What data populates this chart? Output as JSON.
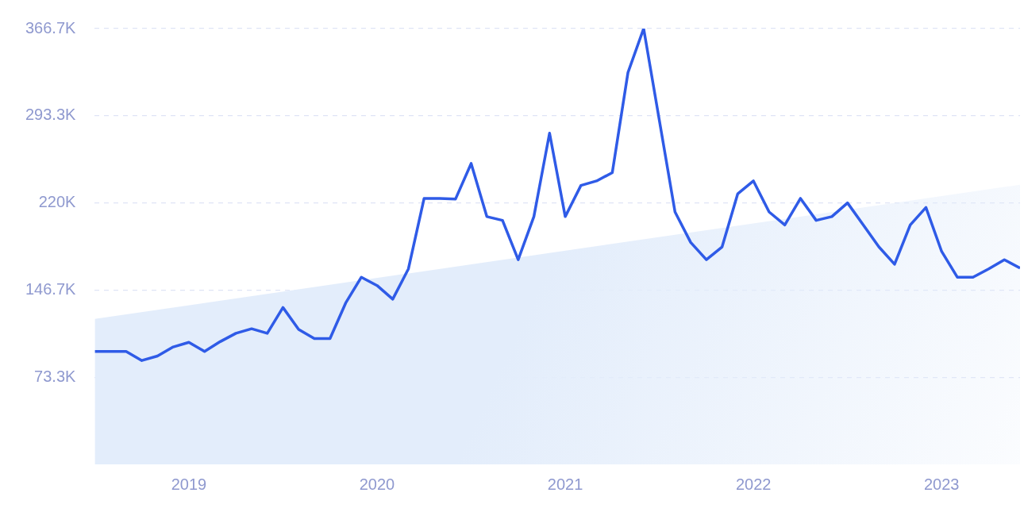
{
  "chart_data": {
    "type": "line",
    "x": [
      "2018-07",
      "2018-08",
      "2018-09",
      "2018-10",
      "2018-11",
      "2018-12",
      "2019-01",
      "2019-02",
      "2019-03",
      "2019-04",
      "2019-05",
      "2019-06",
      "2019-07",
      "2019-08",
      "2019-09",
      "2019-10",
      "2019-11",
      "2019-12",
      "2020-01",
      "2020-02",
      "2020-03",
      "2020-04",
      "2020-05",
      "2020-06",
      "2020-07",
      "2020-08",
      "2020-09",
      "2020-10",
      "2020-11",
      "2020-12",
      "2021-01",
      "2021-02",
      "2021-03",
      "2021-04",
      "2021-05",
      "2021-06",
      "2021-07",
      "2021-08",
      "2021-09",
      "2021-10",
      "2021-11",
      "2021-12",
      "2022-01",
      "2022-02",
      "2022-03",
      "2022-04",
      "2022-05",
      "2022-06",
      "2022-07",
      "2022-08",
      "2022-09",
      "2022-10",
      "2022-11",
      "2022-12",
      "2023-01",
      "2023-02",
      "2023-03",
      "2023-04",
      "2023-05",
      "2023-06"
    ],
    "series": [
      {
        "type": "line",
        "color": "#2f5be7",
        "values": [
          95000,
          95000,
          95000,
          87400,
          91200,
          98800,
          102700,
          95000,
          103300,
          110300,
          114100,
          110300,
          132000,
          113500,
          105900,
          105900,
          135800,
          157500,
          150500,
          139000,
          164500,
          223800,
          223800,
          223200,
          253200,
          208500,
          205300,
          172200,
          208500,
          278700,
          208500,
          234700,
          238500,
          245500,
          329700,
          366700,
          289500,
          212400,
          186800,
          172200,
          183000,
          227700,
          238500,
          212400,
          201500,
          223800,
          205300,
          208500,
          220000,
          201500,
          183000,
          168400,
          201500,
          216200,
          179200,
          157500,
          157500,
          164500,
          172200,
          165200
        ]
      },
      {
        "type": "area",
        "color": "#e3edfb",
        "x": [
          "2018-07",
          "2023-06"
        ],
        "values": [
          122400,
          235300
        ]
      }
    ],
    "xlim": [
      "2018-07",
      "2023-06"
    ],
    "xticks": [
      {
        "value": "2019",
        "label": "2019"
      },
      {
        "value": "2020",
        "label": "2020"
      },
      {
        "value": "2021",
        "label": "2021"
      },
      {
        "value": "2022",
        "label": "2022"
      },
      {
        "value": "2023",
        "label": "2023"
      }
    ],
    "ylim": [
      0,
      366700
    ],
    "yticks": [
      {
        "value": 73300,
        "label": "73.3K"
      },
      {
        "value": 146700,
        "label": "146.7K"
      },
      {
        "value": 220000,
        "label": "220K"
      },
      {
        "value": 293300,
        "label": "293.3K"
      },
      {
        "value": 366700,
        "label": "366.7K"
      }
    ],
    "grid": "y",
    "legend": false,
    "marker": "none",
    "line_style": "solid"
  }
}
